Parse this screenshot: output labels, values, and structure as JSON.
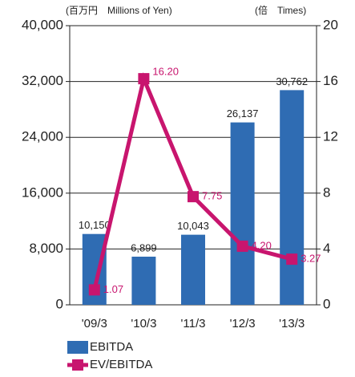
{
  "chart_data": {
    "type": "bar",
    "y_label": "(百万円　Millions of Yen)",
    "y2_label": "(倍　Times)",
    "categories": [
      "'09/3",
      "'10/3",
      "'11/3",
      "'12/3",
      "'13/3"
    ],
    "series": [
      {
        "name": "EBITDA",
        "type": "bar",
        "color": "#2f6cb3",
        "values": [
          10150,
          6899,
          10043,
          26137,
          30762
        ],
        "value_labels": [
          "10,150",
          "6,899",
          "10,043",
          "26,137",
          "30,762"
        ]
      },
      {
        "name": "EV/EBITDA",
        "type": "line",
        "axis": "y2",
        "color": "#c8156e",
        "values": [
          1.07,
          16.2,
          7.75,
          4.2,
          3.27
        ],
        "value_labels": [
          "1.07",
          "16.20",
          "7.75",
          "4.20",
          "3.27"
        ]
      }
    ],
    "ylim": [
      0,
      40000
    ],
    "yticks": [
      {
        "value": 0,
        "label": "0"
      },
      {
        "value": 8000,
        "label": "8,000"
      },
      {
        "value": 16000,
        "label": "16,000"
      },
      {
        "value": 24000,
        "label": "24,000"
      },
      {
        "value": 32000,
        "label": "32,000"
      },
      {
        "value": 40000,
        "label": "40,000"
      }
    ],
    "y2lim": [
      0,
      20
    ],
    "y2ticks": [
      0,
      4,
      8,
      12,
      16,
      20
    ],
    "grid": true
  }
}
